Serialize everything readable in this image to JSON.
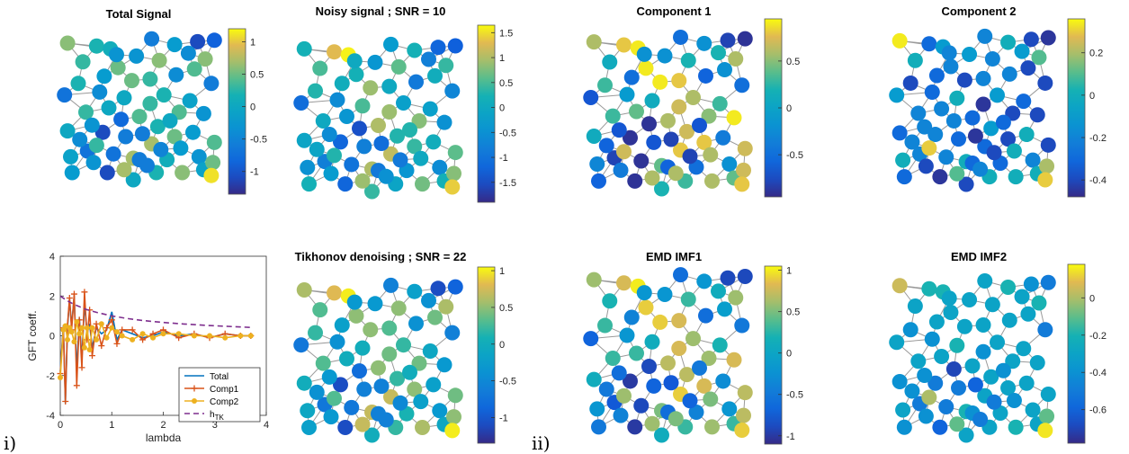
{
  "panel_labels": {
    "left": "i)",
    "right": "ii)"
  },
  "colormap": "parula",
  "chart_data": [
    {
      "type": "graph-signal",
      "title": "Total Signal",
      "colorbar": {
        "ticks": [
          "1",
          "0.5",
          "0",
          "-0.5",
          "-1"
        ],
        "tick_values": [
          1,
          0.5,
          0,
          -0.5,
          -1
        ],
        "range": [
          -1.35,
          1.2
        ]
      },
      "node_values": [
        0.6,
        0.2,
        0.1,
        -0.6,
        -1.1,
        -0.2,
        -0.9,
        0.3,
        -0.3,
        0.6,
        0.6,
        0.5,
        -0.4,
        0.2,
        -0.6,
        0.5,
        0.3,
        -0.7,
        -0.4,
        0.0,
        0.2,
        -0.1,
        0.3,
        0.0,
        0.4,
        -0.3,
        0.4,
        0.3,
        0.2,
        0.0,
        -1.1,
        -0.6,
        -0.2,
        0.5,
        0.4,
        0.7,
        -0.7,
        -0.1,
        0.7,
        -0.7,
        0.1,
        -0.3,
        -1.1,
        -0.2,
        0.2,
        0.0,
        0.6,
        -0.3,
        -0.8,
        -0.6,
        0.0,
        0.4,
        -0.2,
        -0.6,
        -0.4,
        -0.5,
        -0.3,
        -0.4,
        -0.3,
        -0.1,
        0.5,
        0.7,
        1.1,
        -0.6,
        -0.2,
        0.3
      ]
    },
    {
      "type": "graph-signal",
      "title": "Noisy signal ; SNR = 10",
      "colorbar": {
        "ticks": [
          "1.5",
          "1",
          "0.5",
          "0",
          "-0.5",
          "-1",
          "-1.5"
        ],
        "tick_values": [
          1.5,
          1,
          0.5,
          0,
          -0.5,
          -1,
          -1.5
        ],
        "range": [
          -1.9,
          1.65
        ]
      },
      "node_values": [
        0.2,
        1.3,
        1.6,
        -0.3,
        -1.2,
        0.2,
        -1.3,
        0.5,
        -0.4,
        0.6,
        0.4,
        0.2,
        -0.9,
        0.3,
        -0.7,
        0.9,
        0.0,
        -1.1,
        -0.6,
        0.5,
        -0.2,
        -0.2,
        0.9,
        -0.4,
        0.8,
        -0.5,
        1.0,
        0.0,
        0.3,
        -0.1,
        -1.2,
        -0.8,
        0.1,
        0.4,
        0.6,
        1.1,
        -0.8,
        -0.5,
        1.0,
        -1.0,
        -0.4,
        -0.6,
        -1.2,
        0.2,
        -0.1,
        0.4,
        0.7,
        -0.6,
        -1.5,
        -1.1,
        0.3,
        0.1,
        0.1,
        -0.9,
        -0.1,
        -0.9,
        0.0,
        -0.8,
        -0.3,
        0.2,
        0.8,
        0.9,
        1.4,
        -0.5,
        0.0,
        0.3
      ]
    },
    {
      "type": "graph-signal",
      "title": "Component 1",
      "colorbar": {
        "ticks": [
          "0.5",
          "0",
          "-0.5"
        ],
        "tick_values": [
          0.5,
          0,
          -0.5
        ],
        "range": [
          -0.95,
          0.95
        ]
      },
      "node_values": [
        0.6,
        0.8,
        0.9,
        -0.5,
        -0.8,
        -0.2,
        -0.9,
        0.1,
        -0.2,
        0.2,
        0.6,
        0.9,
        -0.6,
        0.3,
        -0.5,
        0.9,
        0.8,
        -0.7,
        -0.1,
        0.1,
        0.6,
        0.3,
        0.7,
        0.4,
        0.5,
        0.9,
        0.6,
        0.3,
        0.7,
        0.1,
        -0.9,
        -0.7,
        -0.4,
        0.8,
        0.7,
        0.8,
        -0.8,
        -0.3,
        0.4,
        -0.9,
        -0.5,
        -0.2,
        -0.9,
        -0.6,
        0.3,
        0.2,
        0.6,
        -0.7,
        -0.9,
        -0.8,
        -0.7,
        -0.2,
        -0.5,
        -0.6,
        -0.6,
        -0.8,
        -0.2,
        0.2,
        -0.4,
        0.4,
        0.7,
        0.6,
        0.8,
        0.6,
        0.6,
        0.7
      ]
    },
    {
      "type": "graph-signal",
      "title": "Component 2",
      "colorbar": {
        "ticks": [
          "0.2",
          "0",
          "-0.2",
          "-0.4"
        ],
        "tick_values": [
          0.2,
          0,
          -0.2,
          -0.4
        ],
        "range": [
          -0.48,
          0.36
        ]
      },
      "node_values": [
        0.34,
        -0.3,
        -0.1,
        -0.2,
        -0.4,
        0.0,
        -0.45,
        0.0,
        -0.1,
        -0.2,
        0.1,
        -0.2,
        -0.2,
        -0.4,
        -0.4,
        -0.4,
        -0.2,
        -0.1,
        -0.3,
        0.0,
        -0.1,
        -0.3,
        -0.45,
        -0.2,
        -0.4,
        -0.4,
        -0.3,
        -0.2,
        -0.1,
        -0.3,
        -0.2,
        -0.3,
        0.0,
        -0.4,
        -0.4,
        -0.3,
        -0.2,
        0.0,
        0.0,
        -0.2,
        -0.3,
        -0.2,
        -0.45,
        -0.3,
        0.0,
        -0.4,
        0.0,
        -0.2,
        -0.2,
        -0.45,
        -0.3,
        -0.4,
        -0.3,
        -0.3,
        -0.2,
        -0.4,
        -0.2,
        -0.1,
        -0.4,
        0.0,
        0.2,
        0.1,
        0.3,
        -0.2,
        0.0,
        0.3
      ]
    },
    {
      "type": "line",
      "ylabel": "GFT coeff.",
      "xlabel": "lambda",
      "xlim": [
        0,
        4
      ],
      "ylim": [
        -4,
        4
      ],
      "xticks": [
        "0",
        "1",
        "2",
        "3",
        "4"
      ],
      "xtick_values": [
        0,
        1,
        2,
        3,
        4
      ],
      "yticks": [
        "4",
        "2",
        "0",
        "-2",
        "-4"
      ],
      "ytick_values": [
        4,
        2,
        0,
        -2,
        -4
      ],
      "legend_position": "lower-right",
      "series": [
        {
          "name": "Total",
          "color": "#0072BD",
          "marker": "none",
          "x": [
            0,
            0.06,
            0.1,
            0.14,
            0.18,
            0.22,
            0.27,
            0.32,
            0.37,
            0.42,
            0.47,
            0.52,
            0.57,
            0.62,
            0.7,
            0.8,
            0.9,
            1.0,
            1.1,
            1.2,
            1.4,
            1.6,
            1.8,
            2.0,
            2.3,
            2.6,
            2.9,
            3.2,
            3.5,
            3.7
          ],
          "y": [
            -1.8,
            0.5,
            -3.4,
            0.4,
            1.8,
            0.5,
            2.0,
            -1.8,
            0.9,
            -1.2,
            1.6,
            0.2,
            0.6,
            -0.6,
            0.4,
            0.1,
            0.3,
            1.2,
            -0.2,
            0.3,
            0.1,
            -0.1,
            0.0,
            0.2,
            0.0,
            0.1,
            -0.1,
            0.1,
            0.0,
            0.0
          ]
        },
        {
          "name": "Comp1",
          "color": "#D95319",
          "marker": "plus",
          "x": [
            0,
            0.06,
            0.1,
            0.14,
            0.18,
            0.22,
            0.27,
            0.32,
            0.37,
            0.42,
            0.47,
            0.52,
            0.57,
            0.62,
            0.7,
            0.8,
            0.9,
            1.0,
            1.1,
            1.2,
            1.4,
            1.6,
            1.8,
            2.0,
            2.3,
            2.6,
            2.9,
            3.2,
            3.5,
            3.7
          ],
          "y": [
            -1.9,
            0.4,
            -3.3,
            0.5,
            1.9,
            0.3,
            2.1,
            -2.5,
            0.8,
            -1.6,
            2.2,
            -0.2,
            1.3,
            -1.0,
            0.6,
            -0.5,
            0.4,
            0.8,
            -0.4,
            0.3,
            0.3,
            -0.2,
            0.1,
            0.3,
            -0.1,
            0.1,
            -0.1,
            0.1,
            0.0,
            0.0
          ]
        },
        {
          "name": "Comp2",
          "color": "#EDB120",
          "marker": "dot",
          "x": [
            0,
            0.06,
            0.1,
            0.14,
            0.18,
            0.22,
            0.27,
            0.32,
            0.37,
            0.42,
            0.47,
            0.52,
            0.57,
            0.62,
            0.7,
            0.8,
            0.9,
            1.0,
            1.1,
            1.2,
            1.4,
            1.6,
            1.8,
            2.0,
            2.3,
            2.6,
            2.9,
            3.2,
            3.5,
            3.7
          ],
          "y": [
            -2.1,
            0.3,
            0.5,
            -0.2,
            0.4,
            0.2,
            -0.3,
            0.7,
            0.1,
            0.4,
            -0.6,
            0.4,
            -0.7,
            0.4,
            -0.2,
            0.6,
            -0.1,
            0.4,
            0.2,
            0.0,
            -0.2,
            0.1,
            -0.1,
            0.1,
            0.1,
            0.0,
            0.0,
            -0.1,
            0.0,
            0.0
          ]
        },
        {
          "name": "h_TK",
          "label_main": "h",
          "label_sub": "TK",
          "color": "#7E2F8E",
          "marker": "none",
          "dashed": true,
          "x": [
            0,
            0.1,
            0.2,
            0.3,
            0.5,
            0.7,
            1.0,
            1.3,
            1.6,
            2.0,
            2.4,
            2.8,
            3.2,
            3.7
          ],
          "y": [
            2.0,
            1.82,
            1.67,
            1.54,
            1.33,
            1.18,
            1.0,
            0.87,
            0.77,
            0.67,
            0.59,
            0.53,
            0.48,
            0.42
          ]
        }
      ]
    },
    {
      "type": "graph-signal",
      "title": "Tikhonov denoising ; SNR = 22",
      "colorbar": {
        "ticks": [
          "1",
          "0.5",
          "0",
          "-0.5",
          "-1"
        ],
        "tick_values": [
          1,
          0.5,
          0,
          -0.5,
          -1
        ],
        "range": [
          -1.35,
          1.05
        ]
      },
      "node_values": [
        0.6,
        0.8,
        1.0,
        -0.6,
        -1.1,
        -0.2,
        -0.9,
        0.3,
        -0.3,
        0.5,
        0.6,
        0.5,
        -0.4,
        0.2,
        -0.6,
        0.5,
        0.3,
        -0.7,
        -0.4,
        0.0,
        0.2,
        -0.1,
        0.4,
        0.0,
        0.4,
        -0.3,
        0.5,
        0.3,
        0.2,
        0.0,
        -1.1,
        -0.6,
        -0.2,
        0.5,
        0.4,
        0.7,
        -0.7,
        -0.1,
        0.7,
        -0.7,
        0.1,
        -0.3,
        -1.1,
        -0.2,
        0.2,
        0.0,
        0.6,
        -0.3,
        -0.8,
        -0.6,
        0.0,
        0.4,
        -0.2,
        -0.6,
        -0.4,
        -0.5,
        -0.3,
        -0.4,
        -0.3,
        -0.1,
        0.5,
        0.7,
        1.0,
        -0.6,
        -0.2,
        0.3
      ]
    },
    {
      "type": "graph-signal",
      "title": "EMD IMF1",
      "colorbar": {
        "ticks": [
          "1",
          "0.5",
          "0",
          "-0.5",
          "-1"
        ],
        "tick_values": [
          1,
          0.5,
          0,
          -0.5,
          -1
        ],
        "range": [
          -1.1,
          1.05
        ]
      },
      "node_values": [
        0.6,
        0.8,
        1.0,
        -0.6,
        -0.9,
        -0.2,
        -0.9,
        0.2,
        -0.2,
        0.3,
        0.6,
        0.9,
        -0.6,
        0.3,
        -0.5,
        0.9,
        0.8,
        -0.7,
        -0.2,
        0.1,
        0.6,
        0.2,
        0.8,
        0.3,
        0.6,
        0.8,
        0.7,
        0.3,
        0.7,
        0.1,
        -1.0,
        -0.7,
        -0.3,
        0.8,
        0.7,
        0.9,
        -0.8,
        -0.2,
        0.5,
        -0.9,
        -0.4,
        -0.2,
        -1.0,
        -0.5,
        0.3,
        0.1,
        0.6,
        -0.6,
        -0.9,
        -0.8,
        -0.5,
        -0.1,
        -0.4,
        -0.6,
        -0.5,
        -0.7,
        -0.2,
        0.1,
        -0.4,
        0.3,
        0.7,
        0.6,
        0.9,
        0.5,
        0.5,
        0.6
      ]
    },
    {
      "type": "graph-signal",
      "title": "EMD IMF2",
      "colorbar": {
        "ticks": [
          "0",
          "-0.2",
          "-0.4",
          "-0.6"
        ],
        "tick_values": [
          0,
          -0.2,
          -0.4,
          -0.6
        ],
        "range": [
          -0.78,
          0.18
        ]
      },
      "node_values": [
        0.05,
        -0.2,
        -0.2,
        -0.3,
        -0.4,
        -0.2,
        -0.5,
        -0.3,
        -0.3,
        -0.3,
        -0.2,
        -0.3,
        -0.3,
        -0.4,
        -0.5,
        -0.3,
        -0.3,
        -0.3,
        -0.4,
        -0.2,
        -0.3,
        -0.3,
        -0.4,
        -0.3,
        -0.3,
        -0.3,
        -0.3,
        -0.3,
        -0.3,
        -0.4,
        -0.5,
        -0.5,
        -0.3,
        -0.3,
        -0.3,
        -0.3,
        -0.5,
        -0.3,
        -0.2,
        -0.5,
        -0.3,
        -0.3,
        -0.6,
        -0.4,
        -0.3,
        -0.3,
        -0.2,
        -0.4,
        -0.7,
        -0.6,
        -0.4,
        -0.3,
        -0.3,
        -0.4,
        -0.4,
        -0.5,
        -0.3,
        -0.3,
        -0.4,
        -0.3,
        -0.1,
        -0.1,
        0.15,
        -0.5,
        -0.4,
        0.0
      ]
    }
  ]
}
